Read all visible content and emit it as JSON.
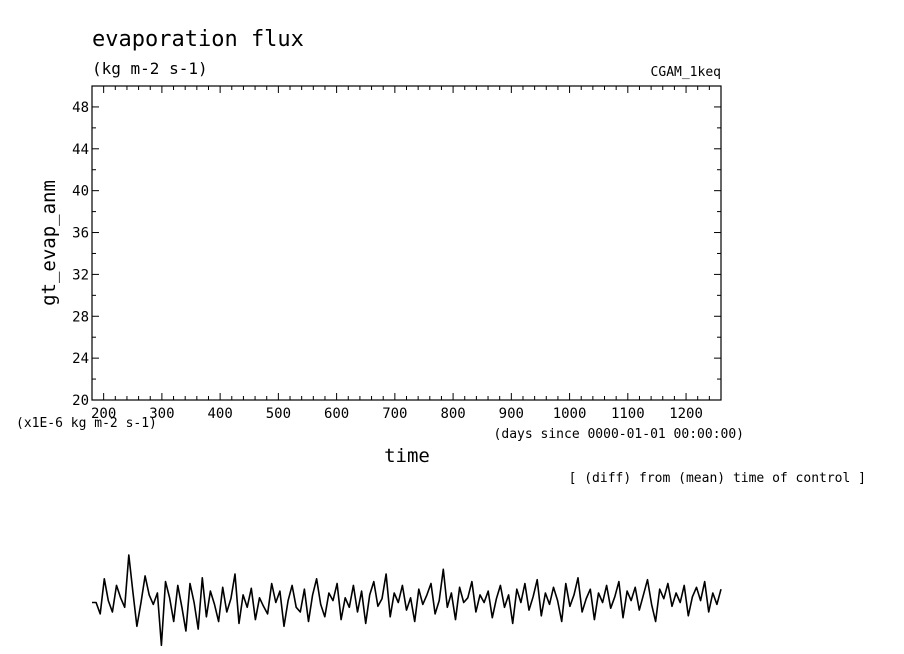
{
  "chart_data": {
    "type": "line",
    "title": "evaporation flux",
    "units": "(kg m-2 s-1)",
    "dataset_label": "CGAM_1keq",
    "ylabel": "gt_evap_anm",
    "xlabel": "time",
    "y_scale_note": "(x1E-6 kg m-2 s-1)",
    "x_units_note": "(days since 0000-01-01 00:00:00)",
    "note": "[ (diff) from (mean) time of control ]",
    "xlim": [
      180,
      1260
    ],
    "ylim": [
      20,
      50
    ],
    "xticks": [
      200,
      300,
      400,
      500,
      600,
      700,
      800,
      900,
      1000,
      1100,
      1200
    ],
    "yticks": [
      20,
      24,
      28,
      32,
      36,
      40,
      44,
      48
    ],
    "xtick_labels": [
      "200",
      "300",
      "400",
      "500",
      "600",
      "700",
      "800",
      "900",
      "1000",
      "1100",
      "1200"
    ],
    "ytick_labels": [
      "20",
      "24",
      "28",
      "32",
      "36",
      "40",
      "44",
      "48"
    ],
    "grid": false,
    "series": [
      {
        "values": [
          0.1,
          0.1,
          -0.02,
          0.35,
          0.12,
          0.0,
          0.28,
          0.15,
          0.05,
          0.6,
          0.22,
          -0.15,
          0.1,
          0.38,
          0.18,
          0.08,
          0.2,
          -0.35,
          0.32,
          0.15,
          -0.1,
          0.28,
          0.05,
          -0.2,
          0.3,
          0.1,
          -0.18,
          0.36,
          -0.05,
          0.22,
          0.08,
          -0.1,
          0.26,
          0.0,
          0.14,
          0.4,
          -0.12,
          0.18,
          0.05,
          0.25,
          -0.08,
          0.15,
          0.06,
          -0.02,
          0.3,
          0.1,
          0.22,
          -0.15,
          0.12,
          0.28,
          0.05,
          0.0,
          0.24,
          -0.1,
          0.18,
          0.35,
          0.08,
          -0.05,
          0.2,
          0.12,
          0.3,
          -0.08,
          0.15,
          0.05,
          0.28,
          0.0,
          0.22,
          -0.12,
          0.18,
          0.32,
          0.06,
          0.14,
          0.4,
          -0.05,
          0.2,
          0.1,
          0.28,
          0.02,
          0.15,
          -0.1,
          0.24,
          0.08,
          0.18,
          0.3,
          -0.02,
          0.12,
          0.45,
          0.05,
          0.2,
          -0.08,
          0.26,
          0.1,
          0.15,
          0.32,
          0.0,
          0.18,
          0.1,
          0.22,
          -0.06,
          0.14,
          0.28,
          0.05,
          0.18,
          -0.12,
          0.24,
          0.1,
          0.3,
          0.02,
          0.16,
          0.34,
          -0.04,
          0.2,
          0.08,
          0.26,
          0.12,
          -0.1,
          0.3,
          0.06,
          0.18,
          0.36,
          0.0,
          0.14,
          0.24,
          -0.08,
          0.2,
          0.1,
          0.28,
          0.04,
          0.16,
          0.32,
          -0.06,
          0.22,
          0.12,
          0.26,
          0.02,
          0.18,
          0.34,
          0.08,
          -0.1,
          0.24,
          0.14,
          0.3,
          0.06,
          0.2,
          0.1,
          0.28,
          -0.04,
          0.16,
          0.26,
          0.12,
          0.32,
          0.0,
          0.2,
          0.08,
          0.24
        ]
      }
    ]
  }
}
